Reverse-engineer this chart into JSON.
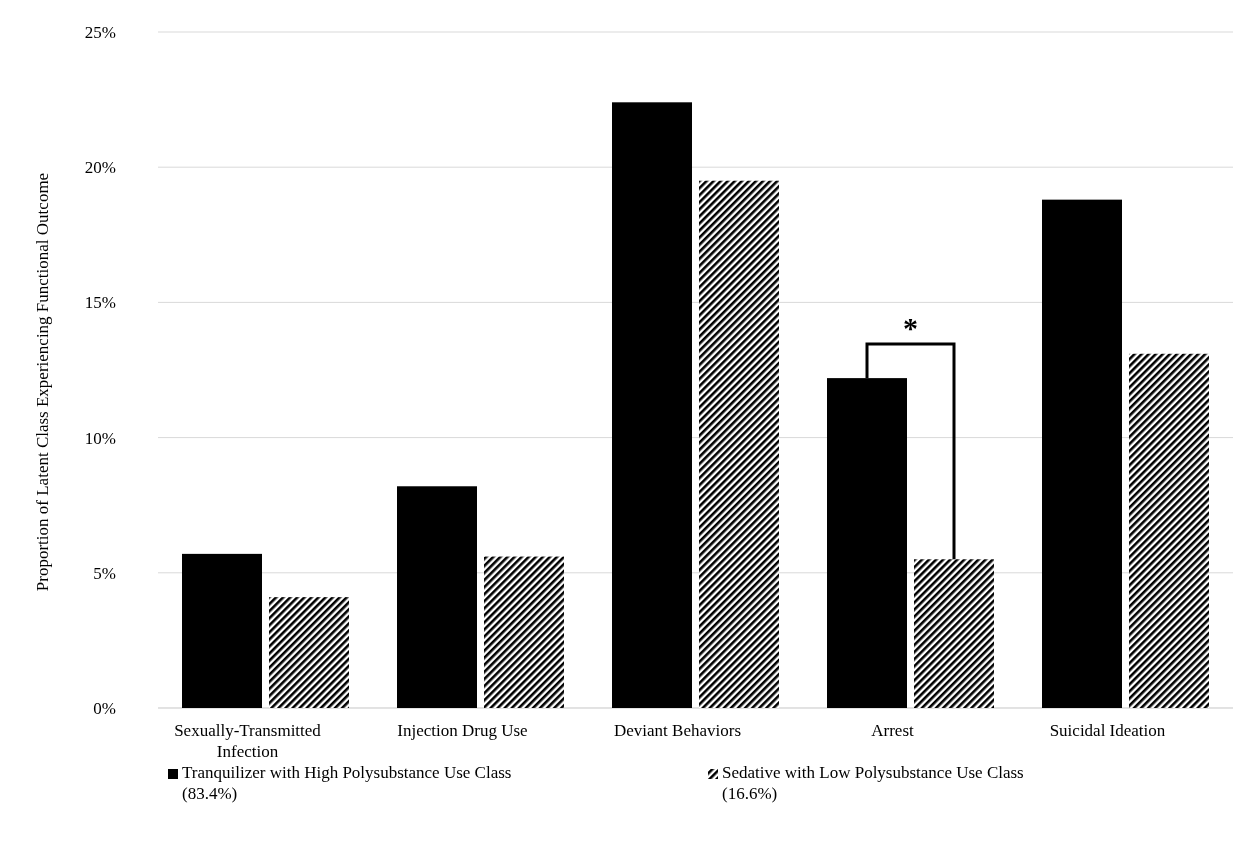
{
  "chart_data": {
    "type": "bar",
    "ylabel": "Proportion of Latent Class Experiencing Functional Outcome",
    "categories": [
      "Sexually-Transmitted Infection",
      "Injection Drug Use",
      "Deviant Behaviors",
      "Arrest",
      "Suicidal Ideation"
    ],
    "series": [
      {
        "name": "Tranquilizer with High Polysubstance Use Class (83.4%)",
        "color": "#000000",
        "values": [
          5.7,
          8.2,
          22.4,
          12.2,
          18.8
        ]
      },
      {
        "name": "Sedative with Low Polysubstance Use Class (16.6%)",
        "color": "#000000",
        "values": [
          4.1,
          5.6,
          19.5,
          5.5,
          13.1
        ]
      }
    ],
    "ylim": [
      0,
      25
    ],
    "yticks": [
      {
        "value": 0,
        "label": "0%"
      },
      {
        "value": 5,
        "label": "5%"
      },
      {
        "value": 10,
        "label": "10%"
      },
      {
        "value": 15,
        "label": "15%"
      },
      {
        "value": 20,
        "label": "20%"
      },
      {
        "value": 25,
        "label": "25%"
      }
    ],
    "grid": "y",
    "legend": "bottom",
    "annotations": [
      "*"
    ]
  }
}
